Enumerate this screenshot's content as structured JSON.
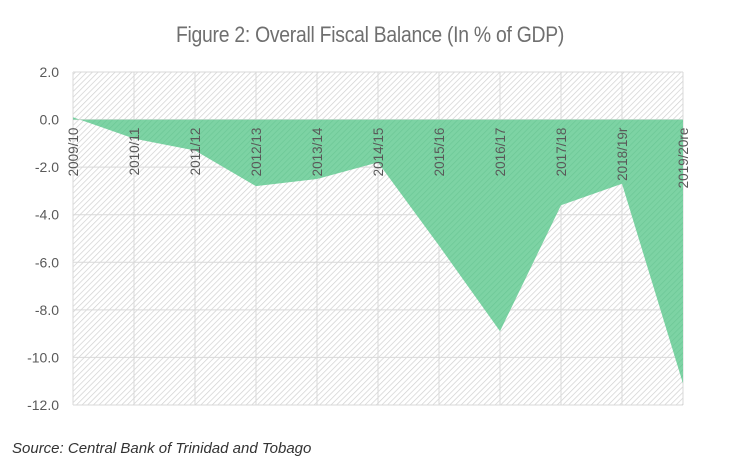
{
  "chart_data": {
    "type": "area",
    "title": "Figure 2: Overall Fiscal Balance (In % of GDP)",
    "xlabel": "",
    "ylabel": "",
    "categories": [
      "2009/10",
      "2010/11",
      "2011/12",
      "2012/13",
      "2013/14",
      "2014/15",
      "2015/16",
      "2016/17",
      "2017/18",
      "2018/19r",
      "2019/20re"
    ],
    "series": [
      {
        "name": "Overall Fiscal Balance",
        "values": [
          0.1,
          -0.8,
          -1.3,
          -2.8,
          -2.5,
          -1.8,
          -5.3,
          -8.9,
          -3.6,
          -2.7,
          -11.1
        ],
        "color": "#6fcf97"
      }
    ],
    "ylim": [
      -12.0,
      2.0
    ],
    "yticks": [
      "2.0",
      "0.0",
      "-2.0",
      "-4.0",
      "-6.0",
      "-8.0",
      "-10.0",
      "-12.0"
    ],
    "ytick_values": [
      2,
      0,
      -2,
      -4,
      -6,
      -8,
      -10,
      -12
    ],
    "grid": true,
    "legend": "none",
    "plot_background": "hatched-light-gray"
  },
  "source": "Source: Central Bank of Trinidad and Tobago"
}
